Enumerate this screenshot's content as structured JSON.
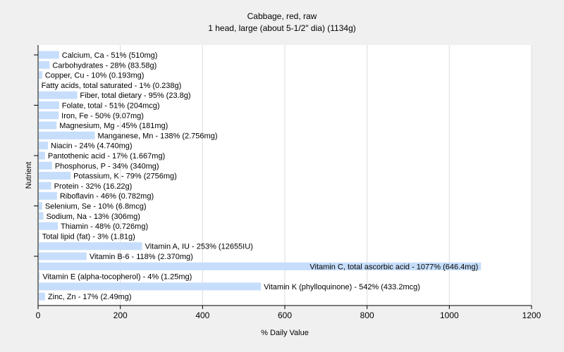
{
  "chart_data": {
    "type": "bar",
    "orientation": "horizontal",
    "title": "Cabbage, red, raw",
    "subtitle": "1 head, large (about 5-1/2\" dia) (1134g)",
    "xlabel": "% Daily Value",
    "ylabel": "Nutrient",
    "xlim": [
      0,
      1200
    ],
    "xticks": [
      "0",
      "200",
      "400",
      "600",
      "800",
      "1000",
      "1200"
    ],
    "grid": true,
    "bar_color": "#c6defb",
    "categories": [
      "Calcium, Ca",
      "Carbohydrates",
      "Copper, Cu",
      "Fatty acids, total saturated",
      "Fiber, total dietary",
      "Folate, total",
      "Iron, Fe",
      "Magnesium, Mg",
      "Manganese, Mn",
      "Niacin",
      "Pantothenic acid",
      "Phosphorus, P",
      "Potassium, K",
      "Protein",
      "Riboflavin",
      "Selenium, Se",
      "Sodium, Na",
      "Thiamin",
      "Total lipid (fat)",
      "Vitamin A, IU",
      "Vitamin B-6",
      "Vitamin C, total ascorbic acid",
      "Vitamin E (alpha-tocopherol)",
      "Vitamin K (phylloquinone)",
      "Zinc, Zn"
    ],
    "values": [
      51,
      28,
      10,
      1,
      95,
      51,
      50,
      45,
      138,
      24,
      17,
      34,
      79,
      32,
      46,
      10,
      13,
      48,
      3,
      253,
      118,
      1077,
      4,
      542,
      17
    ],
    "labels": [
      "Calcium, Ca - 51% (510mg)",
      "Carbohydrates - 28% (83.58g)",
      "Copper, Cu - 10% (0.193mg)",
      "Fatty acids, total saturated - 1% (0.238g)",
      "Fiber, total dietary - 95% (23.8g)",
      "Folate, total - 51% (204mcg)",
      "Iron, Fe - 50% (9.07mg)",
      "Magnesium, Mg - 45% (181mg)",
      "Manganese, Mn - 138% (2.756mg)",
      "Niacin - 24% (4.740mg)",
      "Pantothenic acid - 17% (1.667mg)",
      "Phosphorus, P - 34% (340mg)",
      "Potassium, K - 79% (2756mg)",
      "Protein - 32% (16.22g)",
      "Riboflavin - 46% (0.782mg)",
      "Selenium, Se - 10% (6.8mcg)",
      "Sodium, Na - 13% (306mg)",
      "Thiamin - 48% (0.726mg)",
      "Total lipid (fat) - 3% (1.81g)",
      "Vitamin A, IU - 253% (12655IU)",
      "Vitamin B-6 - 118% (2.370mg)",
      "Vitamin C, total ascorbic acid - 1077% (646.4mg)",
      "Vitamin E (alpha-tocopherol) - 4% (1.25mg)",
      "Vitamin K (phylloquinone) - 542% (433.2mcg)",
      "Zinc, Zn - 17% (2.49mg)"
    ]
  }
}
